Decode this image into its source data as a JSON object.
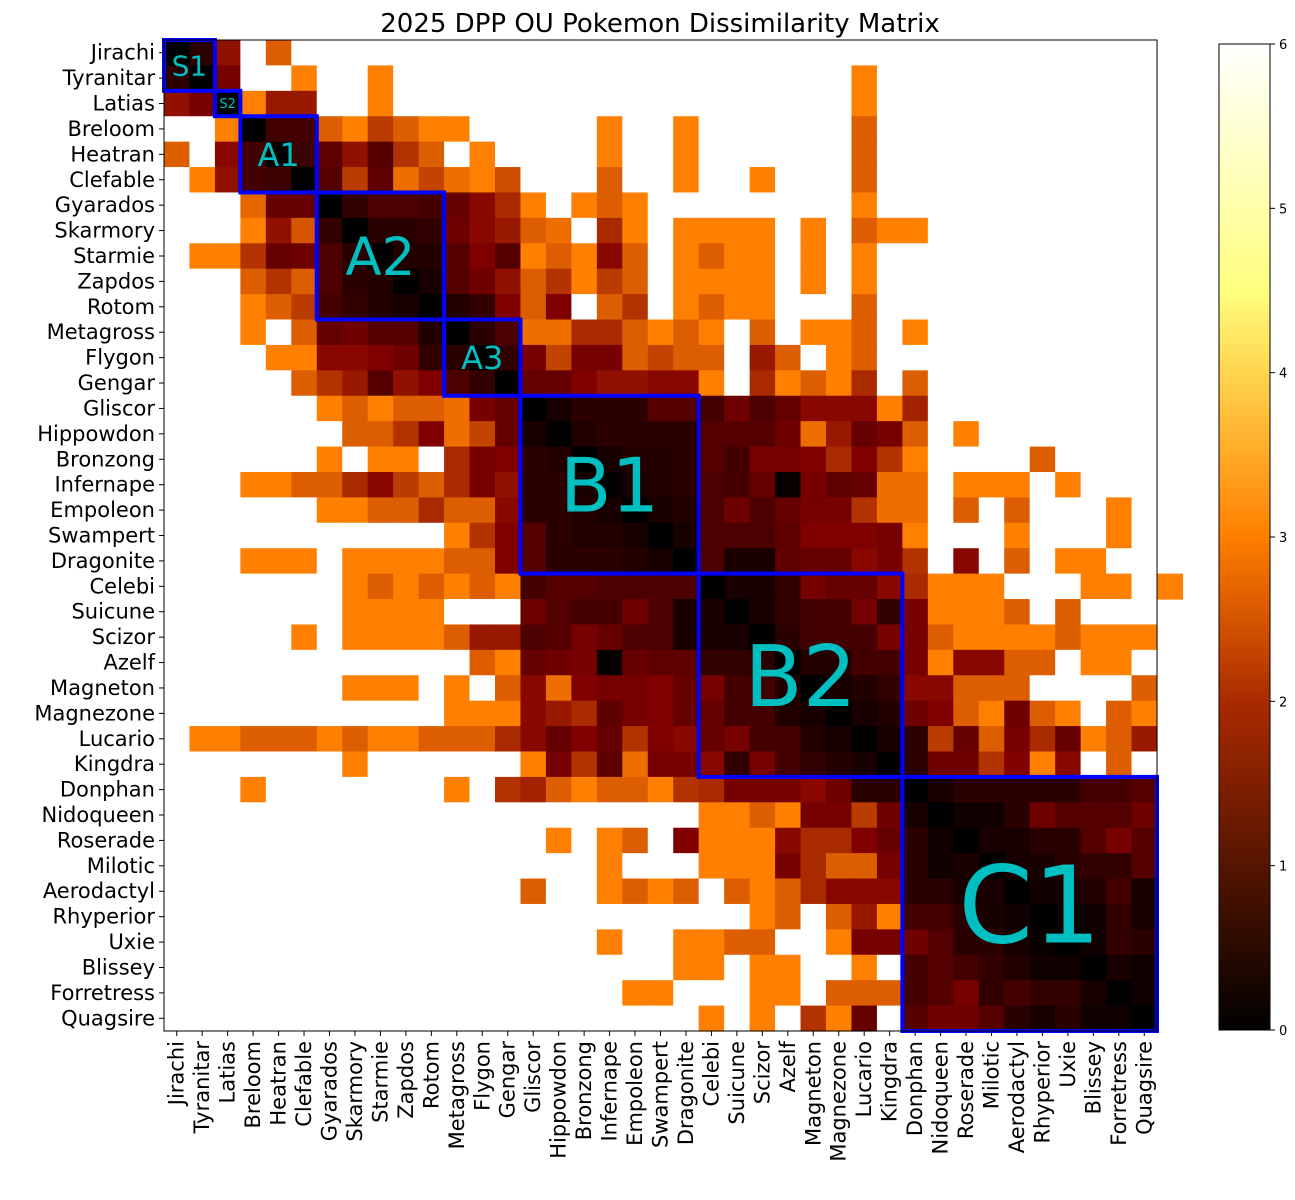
{
  "chart_data": {
    "type": "heatmap",
    "title": "2025 DPP OU Pokemon Dissimilarity Matrix",
    "xlabel": "",
    "ylabel": "",
    "labels": [
      "Jirachi",
      "Tyranitar",
      "Latias",
      "Breloom",
      "Heatran",
      "Clefable",
      "Gyarados",
      "Skarmory",
      "Starmie",
      "Zapdos",
      "Rotom",
      "Metagross",
      "Flygon",
      "Gengar",
      "Gliscor",
      "Hippowdon",
      "Bronzong",
      "Infernape",
      "Empoleon",
      "Swampert",
      "Dragonite",
      "Celebi",
      "Suicune",
      "Scizor",
      "Azelf",
      "Magneton",
      "Magnezone",
      "Lucario",
      "Kingdra",
      "Donphan",
      "Nidoqueen",
      "Roserade",
      "Milotic",
      "Aerodactyl",
      "Rhyperior",
      "Uxie",
      "Blissey",
      "Forretress",
      "Quagsire"
    ],
    "matrix_rows": [
      "0 0.5 1.7 x 2.6 x x x x x x x x x x x x x x x x x x x x x x x x x x x x x x x x x x",
      "0.5 0 1.4 x x 3 x x 3 x x x x x x x x x x x x x x x x x x 3 x x x x x x x x x x x",
      "1.7 1.4 0 3 1.8 1.8 x x 3 x x x x x x x x x x x x x x x x x x 3 x x x x x x x x x x x",
      "x x 3 0 0.8 0.8 2.6 3 2.2 2.6 3 3 x x x x x 3 x x 3 x x x x x x 2.6 x x x x x x x x x x x",
      "2.6 x 1.6 0.8 0 0.7 1.1 1.7 1 2.1 2.6 x 3 x x x x 3 x x 3 x x x x x x 2.6 x x x x x x x x x x x",
      "x 3 1.7 0.8 0.7 0 1 2.2 1.1 2.8 2.3 2.8 3 2.4 x x x 2.6 x x 3 x x 3 x x x 2.6 x x x x x x x x x x x",
      "x x x 2.7 1.2 1.2 0 0.6 0.9 0.9 0.8 1.2 1.6 2 3 x 3 2.6 3 x x x x x x x x 3 x x x x x x x x x x",
      "x x x 3 1.7 2.5 0.6 0 0.5 0.5 0.6 1.3 1.6 1.8 2.6 2.8 x 2 3 x 3 3 3 3 x 3 x 2.6 3 3 x x x x x x x x x",
      "x 3 3 2.1 1.2 1.3 0.9 0.5 0 0.4 0.4 1 1.5 1 3 2.6 3 1.6 2.6 x 3 2.6 3 3 x 3 x 3 x x x x x x x x x x x",
      "x x x 2.6 2.1 2.6 0.9 0.5 0.4 0 0.3 1 1.3 1.7 2.6 2.1 3 2.2 2.6 x 3 3 3 3 x 3 x 3 x x x x x x x x x x x",
      "x x x 3 2.6 2.2 0.8 0.6 0.4 0.3 0 0.4 0.6 1.5 2.6 1.5 x 2.6 2.1 x 3 2.6 3 3 x x x 2.6 x x x x x x x x x x x",
      "x x x 3 x 2.6 1.2 1.3 1 1 0.4 0 0.5 0.9 2.8 2.8 2 2 2.6 3 2.6 3 x 2.6 x 3 3 2.6 x 3 x x x x x x x x x",
      "x x x x 3 3 1.6 1.6 1.5 1.3 0.6 0.5 0 0.6 1.4 2.3 1.4 1.4 2.6 2.3 2.6 2.6 x 1.8 2.6 x 3 2.6 x x x x x x x x x x x",
      "x x x x x 2.6 2.1 1.8 1 1.7 1.5 0.9 0.6 0 1.2 1.2 1.5 1.7 1.7 1.6 1.6 3 x 2 3 2.6 3 2 x 2.6 x x x x x x x x x",
      "x x x x x x 3 2.6 3 2.6 2.6 2.8 1.4 1.2 0 0.3 0.5 0.5 0.5 1 1 0.8 1.3 0.9 1.2 1.6 1.6 1.6 3 1.9 x x x x x x x x x",
      "x x x x x x x 2.6 2.6 2.1 1.5 2.8 2.3 1.2 0.3 0 0.4 0.5 0.5 0.5 0.5 1 1 1 1.3 2.8 1.8 1.2 1.4 2.6 x 3 x x x x x x x",
      "x x x x x x 3 x 3 3 x 2 1.4 1.5 0.5 0.4 0 0.3 0.4 0.4 0.5 1 0.8 1.4 1.4 1.5 2 1.5 2.1 3 x x x x 2.6 x x x x",
      "x x x 3 3 2.6 2.6 2 1.6 2.2 2.6 2 1.4 1.7 0.5 0.5 0.3 0 0.3 0.4 0.5 0.9 0.8 1.2 0.1 1.4 1.1 1.2 2.8 2.8 x 3 3 3 x 3 x x x",
      "x x x x x x 3 3 2.6 2.6 2 2.6 2.6 1.6 0.5 0.5 0.4 0.3 0 0.3 0.4 0.9 1.3 0.9 1.2 1.4 1.4 2.1 2.8 2.8 x 2.6 x 2.6 x x x 3 x",
      "x x x x x x x x x x x 3 2.1 1.5 1 0.5 0.4 0.4 0.3 0 0.3 0.9 0.9 0.9 1.1 1.5 1.5 1.5 1.4 3 x x x 3 x x x 3 x",
      "x x x 3 3 3 x 3 3 3 3 2.6 2.6 1.5 1 0.5 0.5 0.5 0.4 0.3 0 0.9 0.3 0.3 1.1 1.2 1.2 1.6 1.4 2.1 x 1.6 x 2.6 x 3 3 x x",
      "x x x x x x x 3 2.6 3 2.6 3 2.6 3 0.8 1 1 0.9 0.9 0.9 0.9 0 0.3 0.3 0.6 1.4 1.2 1.2 1.6 2 3 3 3 x x x 3 3 x 3",
      "x x x x x x x 3 3 3 3 x x x 1.3 1 0.8 0.8 1.3 0.9 0.3 0.3 0 0.3 0.6 0.8 0.8 1.4 0.6 1.4 3 3 3 2.6 x 2.6 x x x",
      "x x x x x 3 x 3 3 3 3 2.6 1.8 1.8 0.9 1 1.4 1.2 0.9 0.9 0.3 0.3 0.3 0 0.5 0.8 0.8 0.8 1.4 1.4 2.6 3 3 3 3 2.6 3 3 3",
      "x x x x x x x x x x x x 2.6 3 1.2 1.3 1.4 0.1 1.2 1.1 1.1 0.6 0.6 0.5 0 0.4 0.4 0.8 0.8 1.4 3 1.6 1.6 2.6 2.6 x 3 3 x",
      "x x x x x x x 3 3 3 x 3 x 2.6 1.6 2.8 1.5 1.4 1.4 1.5 1.2 1.4 0.8 0.8 0.4 0 0.3 0.4 0.6 1.6 1.6 2.6 2.6 2.6 x x x x 2.6",
      "x x x x x x x x x x x 3 3 3 1.6 1.8 2 1.1 1.4 1.5 1.2 1.2 0.8 0.8 0.4 0.3 0 0.3 0.4 1.3 1.5 2.6 3 1.3 2.6 3 x 2.6 3",
      "x 3 3 2.6 2.6 2.6 3 2.6 3 3 2.6 2.6 2.6 2 1.6 1.2 1.5 1.2 2.1 1.5 1.6 1.2 1.4 0.8 0.8 0.4 0.3 0 0.3 0.5 2.2 1.2 2.6 1.4 2 1.2 3 2.6 1.8",
      "x x x x x x x 3 x x x x x x 3 1.4 2.1 1.1 2.8 1.4 1.4 1.6 0.6 1.4 0.8 0.6 0.4 0.3 0 0.5 1.3 1.3 2.1 1.5 3 1.6 x 2.6 x",
      "x x x 3 x x x x x x x 3 x 2.1 1.9 2.6 3 2.6 2.6 3 2.1 2 1.4 1.4 1.4 1.6 1.3 0.5 0.5 0 0.3 0.5 0.5 0.5 0.5 0.5 0.8 0.8 1",
      "x x x x x x x x x x x x x x x x x x x x x 3 3 2.6 3 1.4 1.4 2.2 1.3 0.3 0 0.2 0.2 0.5 1.3 1 1 1 1.3",
      "x x x x x x x x x x x x x x x 3 x 3 2.6 x 1.5 3 3 3 1.6 2 2 1.5 1.2 0.5 0.2 0 0.3 0.3 0.5 0.5 1 1.4 1",
      "x x x x x x x x x x x x x x x x x 3 x x x 3 3 3 1.4 2 2.6 2.6 1.4 0.5 0.2 0.3 0 0.3 0.3 0.5 0.6 0.6 1",
      "x x x x x x x x x x x x x x 2.6 x x 3 2.6 3 2.6 x 2.6 3 2.6 2 1.6 1.6 1.6 0.5 0.5 0.3 0.3 0 0.2 0.3 0.4 0.8 0.3",
      "x x x x x x x x x x x x x x x x x x x x x x x 3 2.6 x 2.6 1.8 3 0.8 0.8 0.5 0.3 0.2 0 0.1 0.2 0.6 0.3",
      "x x x x x x x x x x x x x x x x x 3 x x 3 3 2.6 2.6 x x 3 1.4 1.4 1.3 1 0.5 0.5 0.3 0.1 0 0.2 0.6 0.5",
      "x x x x x x x x x x x x x x x x x x x x 3 3 x 3 3 x x 3 x 0.8 1 0.8 0.6 0.4 0.2 0.2 0 0.3 0.2",
      "x x x x x x x x x x x x x x x x x x 3 3 x x x 3 3 x 2.6 2.6 2.6 0.8 1 1.4 0.6 0.8 0.6 0.6 0.3 0 0.2",
      "x x x x x x x x x x x x x x x x x x x x x 3 x 3 x 2.1 3 1.2 x 1 1.3 1.3 1 0.5 0.3 0.5 0.2 0.2 0"
    ],
    "missing_code": "x",
    "vmin": 0,
    "vmax": 6,
    "colormap": "afmhot",
    "missing_color": "#ffffff",
    "colorbar_ticks": [
      "0",
      "1",
      "2",
      "3",
      "4",
      "5",
      "6"
    ],
    "cluster_boxes": [
      {
        "label": "S1",
        "start": 0,
        "end": 1
      },
      {
        "label": "S2",
        "start": 2,
        "end": 2
      },
      {
        "label": "A1",
        "start": 3,
        "end": 5
      },
      {
        "label": "A2",
        "start": 6,
        "end": 10
      },
      {
        "label": "A3",
        "start": 11,
        "end": 13
      },
      {
        "label": "B1",
        "start": 14,
        "end": 20
      },
      {
        "label": "B2",
        "start": 21,
        "end": 28
      },
      {
        "label": "C1",
        "start": 29,
        "end": 38
      }
    ],
    "box_color": "#0000ff",
    "box_label_color": "#00bfc0"
  }
}
